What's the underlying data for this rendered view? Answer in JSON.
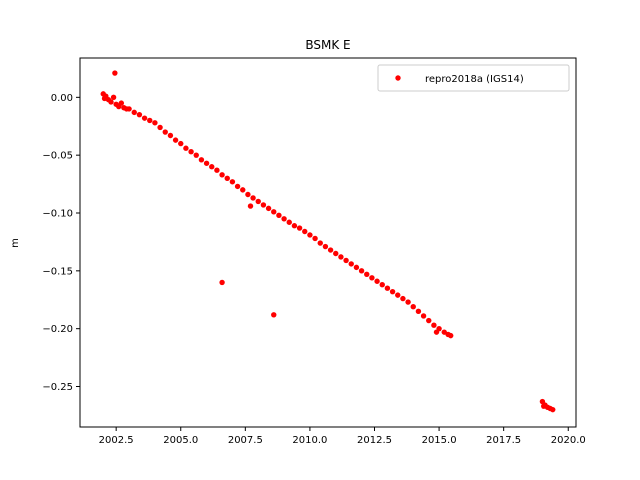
{
  "chart_data": {
    "type": "scatter",
    "title": "BSMK E",
    "xlabel": "",
    "ylabel": "m",
    "xlim": [
      2001.1,
      2020.3
    ],
    "ylim": [
      -0.285,
      0.034
    ],
    "x_ticks": [
      2002.5,
      2005.0,
      2007.5,
      2010.0,
      2012.5,
      2015.0,
      2017.5,
      2020.0
    ],
    "x_tick_labels": [
      "2002.5",
      "2005.0",
      "2007.5",
      "2010.0",
      "2012.5",
      "2015.0",
      "2017.5",
      "2020.0"
    ],
    "y_ticks": [
      0.0,
      -0.05,
      -0.1,
      -0.15,
      -0.2,
      -0.25
    ],
    "y_tick_labels": [
      "0.00",
      "−0.05",
      "−0.10",
      "−0.15",
      "−0.20",
      "−0.25"
    ],
    "legend": {
      "placement": "upper-right",
      "entries": [
        "repro2018a (IGS14)"
      ]
    },
    "grid": false,
    "color": "#ff0000",
    "series": [
      {
        "name": "repro2018a (IGS14)",
        "points": [
          {
            "x": 2002.0,
            "y": 0.003
          },
          {
            "x": 2002.05,
            "y": -0.001
          },
          {
            "x": 2002.1,
            "y": 0.001
          },
          {
            "x": 2002.2,
            "y": -0.002
          },
          {
            "x": 2002.3,
            "y": -0.004
          },
          {
            "x": 2002.4,
            "y": 0.0
          },
          {
            "x": 2002.5,
            "y": -0.006
          },
          {
            "x": 2002.6,
            "y": -0.008
          },
          {
            "x": 2002.7,
            "y": -0.005
          },
          {
            "x": 2002.8,
            "y": -0.009
          },
          {
            "x": 2002.9,
            "y": -0.01
          },
          {
            "x": 2003.0,
            "y": -0.01
          },
          {
            "x": 2003.2,
            "y": -0.013
          },
          {
            "x": 2003.4,
            "y": -0.015
          },
          {
            "x": 2003.6,
            "y": -0.018
          },
          {
            "x": 2003.8,
            "y": -0.02
          },
          {
            "x": 2004.0,
            "y": -0.022
          },
          {
            "x": 2004.2,
            "y": -0.026
          },
          {
            "x": 2004.4,
            "y": -0.03
          },
          {
            "x": 2004.6,
            "y": -0.033
          },
          {
            "x": 2004.8,
            "y": -0.037
          },
          {
            "x": 2005.0,
            "y": -0.04
          },
          {
            "x": 2005.2,
            "y": -0.044
          },
          {
            "x": 2005.4,
            "y": -0.047
          },
          {
            "x": 2005.6,
            "y": -0.05
          },
          {
            "x": 2005.8,
            "y": -0.054
          },
          {
            "x": 2006.0,
            "y": -0.057
          },
          {
            "x": 2006.2,
            "y": -0.06
          },
          {
            "x": 2006.4,
            "y": -0.063
          },
          {
            "x": 2006.6,
            "y": -0.067
          },
          {
            "x": 2006.8,
            "y": -0.07
          },
          {
            "x": 2007.0,
            "y": -0.073
          },
          {
            "x": 2007.2,
            "y": -0.077
          },
          {
            "x": 2007.4,
            "y": -0.08
          },
          {
            "x": 2007.6,
            "y": -0.084
          },
          {
            "x": 2007.8,
            "y": -0.087
          },
          {
            "x": 2008.0,
            "y": -0.09
          },
          {
            "x": 2008.2,
            "y": -0.093
          },
          {
            "x": 2008.4,
            "y": -0.096
          },
          {
            "x": 2008.6,
            "y": -0.099
          },
          {
            "x": 2008.8,
            "y": -0.102
          },
          {
            "x": 2009.0,
            "y": -0.105
          },
          {
            "x": 2009.2,
            "y": -0.108
          },
          {
            "x": 2009.4,
            "y": -0.111
          },
          {
            "x": 2009.6,
            "y": -0.113
          },
          {
            "x": 2009.8,
            "y": -0.116
          },
          {
            "x": 2010.0,
            "y": -0.119
          },
          {
            "x": 2010.2,
            "y": -0.122
          },
          {
            "x": 2010.4,
            "y": -0.126
          },
          {
            "x": 2010.6,
            "y": -0.129
          },
          {
            "x": 2010.8,
            "y": -0.132
          },
          {
            "x": 2011.0,
            "y": -0.135
          },
          {
            "x": 2011.2,
            "y": -0.138
          },
          {
            "x": 2011.4,
            "y": -0.141
          },
          {
            "x": 2011.6,
            "y": -0.144
          },
          {
            "x": 2011.8,
            "y": -0.147
          },
          {
            "x": 2012.0,
            "y": -0.15
          },
          {
            "x": 2012.2,
            "y": -0.153
          },
          {
            "x": 2012.4,
            "y": -0.156
          },
          {
            "x": 2012.6,
            "y": -0.159
          },
          {
            "x": 2012.8,
            "y": -0.162
          },
          {
            "x": 2013.0,
            "y": -0.165
          },
          {
            "x": 2013.2,
            "y": -0.168
          },
          {
            "x": 2013.4,
            "y": -0.171
          },
          {
            "x": 2013.6,
            "y": -0.174
          },
          {
            "x": 2013.8,
            "y": -0.177
          },
          {
            "x": 2014.0,
            "y": -0.181
          },
          {
            "x": 2014.2,
            "y": -0.185
          },
          {
            "x": 2014.4,
            "y": -0.189
          },
          {
            "x": 2014.6,
            "y": -0.193
          },
          {
            "x": 2014.8,
            "y": -0.197
          },
          {
            "x": 2015.0,
            "y": -0.2
          },
          {
            "x": 2015.2,
            "y": -0.203
          },
          {
            "x": 2015.35,
            "y": -0.205
          },
          {
            "x": 2015.45,
            "y": -0.206
          },
          {
            "x": 2002.45,
            "y": 0.021
          },
          {
            "x": 2006.6,
            "y": -0.16
          },
          {
            "x": 2008.6,
            "y": -0.188
          },
          {
            "x": 2007.7,
            "y": -0.094
          },
          {
            "x": 2014.9,
            "y": -0.203
          },
          {
            "x": 2019.0,
            "y": -0.263
          },
          {
            "x": 2019.1,
            "y": -0.266
          },
          {
            "x": 2019.2,
            "y": -0.268
          },
          {
            "x": 2019.3,
            "y": -0.269
          },
          {
            "x": 2019.4,
            "y": -0.27
          },
          {
            "x": 2019.05,
            "y": -0.267
          }
        ]
      }
    ]
  }
}
